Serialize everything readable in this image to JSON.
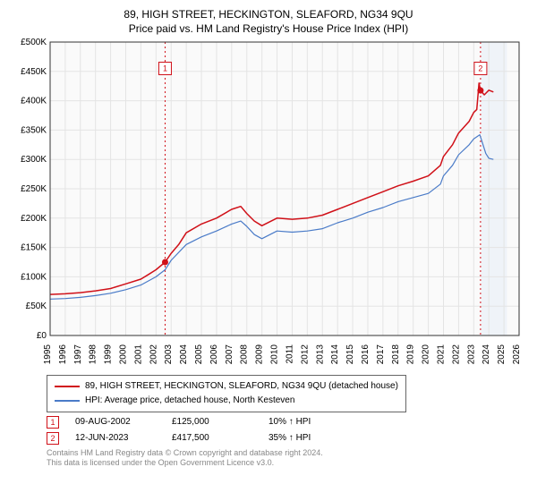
{
  "title": "89, HIGH STREET, HECKINGTON, SLEAFORD, NG34 9QU",
  "subtitle": "Price paid vs. HM Land Registry's House Price Index (HPI)",
  "chart": {
    "type": "line",
    "background_color": "#ffffff",
    "plot_background_color": "#fafafa",
    "grid_color": "#e4e4e4",
    "axis_color": "#333333",
    "x": {
      "min": 1995,
      "max": 2026,
      "ticks": [
        1995,
        1996,
        1997,
        1998,
        1999,
        2000,
        2001,
        2002,
        2003,
        2004,
        2005,
        2006,
        2007,
        2008,
        2009,
        2010,
        2011,
        2012,
        2013,
        2014,
        2015,
        2016,
        2017,
        2018,
        2019,
        2020,
        2021,
        2022,
        2023,
        2024,
        2025,
        2026
      ]
    },
    "y": {
      "min": 0,
      "max": 500000,
      "ticks": [
        0,
        50000,
        100000,
        150000,
        200000,
        250000,
        300000,
        350000,
        400000,
        450000,
        500000
      ],
      "tick_labels": [
        "£0",
        "£50K",
        "£100K",
        "£150K",
        "£200K",
        "£250K",
        "£300K",
        "£350K",
        "£400K",
        "£450K",
        "£500K"
      ]
    },
    "series": [
      {
        "name": "89, HIGH STREET, HECKINGTON, SLEAFORD, NG34 9QU (detached house)",
        "color": "#d01018",
        "width": 1.5,
        "points": [
          [
            1995,
            70000
          ],
          [
            1996,
            71000
          ],
          [
            1997,
            73000
          ],
          [
            1998,
            76000
          ],
          [
            1999,
            80000
          ],
          [
            2000,
            88000
          ],
          [
            2001,
            96000
          ],
          [
            2001.5,
            104000
          ],
          [
            2002,
            112000
          ],
          [
            2002.6,
            125000
          ],
          [
            2003,
            140000
          ],
          [
            2003.5,
            155000
          ],
          [
            2004,
            175000
          ],
          [
            2005,
            190000
          ],
          [
            2006,
            200000
          ],
          [
            2007,
            215000
          ],
          [
            2007.6,
            220000
          ],
          [
            2008,
            208000
          ],
          [
            2008.5,
            195000
          ],
          [
            2009,
            187000
          ],
          [
            2010,
            200000
          ],
          [
            2011,
            198000
          ],
          [
            2012,
            200000
          ],
          [
            2013,
            205000
          ],
          [
            2014,
            215000
          ],
          [
            2015,
            225000
          ],
          [
            2016,
            235000
          ],
          [
            2017,
            245000
          ],
          [
            2018,
            255000
          ],
          [
            2019,
            263000
          ],
          [
            2020,
            272000
          ],
          [
            2020.8,
            290000
          ],
          [
            2021,
            305000
          ],
          [
            2021.6,
            325000
          ],
          [
            2022,
            345000
          ],
          [
            2022.7,
            365000
          ],
          [
            2023,
            380000
          ],
          [
            2023.2,
            385000
          ],
          [
            2023.35,
            430000
          ],
          [
            2023.45,
            417500
          ],
          [
            2023.7,
            410000
          ],
          [
            2024,
            418000
          ],
          [
            2024.3,
            415000
          ]
        ]
      },
      {
        "name": "HPI: Average price, detached house, North Kesteven",
        "color": "#4a7bc8",
        "width": 1.2,
        "points": [
          [
            1995,
            62000
          ],
          [
            1996,
            63000
          ],
          [
            1997,
            65000
          ],
          [
            1998,
            68000
          ],
          [
            1999,
            72000
          ],
          [
            2000,
            78000
          ],
          [
            2001,
            86000
          ],
          [
            2002,
            100000
          ],
          [
            2002.6,
            112000
          ],
          [
            2003,
            128000
          ],
          [
            2004,
            155000
          ],
          [
            2005,
            168000
          ],
          [
            2006,
            178000
          ],
          [
            2007,
            190000
          ],
          [
            2007.6,
            195000
          ],
          [
            2008,
            186000
          ],
          [
            2008.5,
            172000
          ],
          [
            2009,
            165000
          ],
          [
            2010,
            178000
          ],
          [
            2011,
            176000
          ],
          [
            2012,
            178000
          ],
          [
            2013,
            182000
          ],
          [
            2014,
            192000
          ],
          [
            2015,
            200000
          ],
          [
            2016,
            210000
          ],
          [
            2017,
            218000
          ],
          [
            2018,
            228000
          ],
          [
            2019,
            235000
          ],
          [
            2020,
            242000
          ],
          [
            2020.8,
            258000
          ],
          [
            2021,
            272000
          ],
          [
            2021.6,
            290000
          ],
          [
            2022,
            308000
          ],
          [
            2022.7,
            325000
          ],
          [
            2023,
            335000
          ],
          [
            2023.4,
            342000
          ],
          [
            2023.8,
            310000
          ],
          [
            2024,
            302000
          ],
          [
            2024.3,
            300000
          ]
        ]
      }
    ],
    "event_lines": [
      {
        "x": 2002.6,
        "color": "#d01018",
        "marker": "1",
        "marker_y": 455000,
        "dot_y": 125000
      },
      {
        "x": 2023.45,
        "color": "#d01018",
        "marker": "2",
        "marker_y": 455000,
        "dot_y": 417500
      }
    ],
    "shaded": {
      "from": 2023.5,
      "to": 2025.2,
      "color": "#e6ecf5",
      "opacity": 0.55
    }
  },
  "legend": {
    "items": [
      {
        "color": "#d01018",
        "label": "89, HIGH STREET, HECKINGTON, SLEAFORD, NG34 9QU (detached house)"
      },
      {
        "color": "#4a7bc8",
        "label": "HPI: Average price, detached house, North Kesteven"
      }
    ]
  },
  "events": [
    {
      "num": "1",
      "color": "#d01018",
      "date": "09-AUG-2002",
      "price": "£125,000",
      "delta": "10% ↑ HPI"
    },
    {
      "num": "2",
      "color": "#d01018",
      "date": "12-JUN-2023",
      "price": "£417,500",
      "delta": "35% ↑ HPI"
    }
  ],
  "footer": {
    "line1": "Contains HM Land Registry data © Crown copyright and database right 2024.",
    "line2": "This data is licensed under the Open Government Licence v3.0."
  }
}
